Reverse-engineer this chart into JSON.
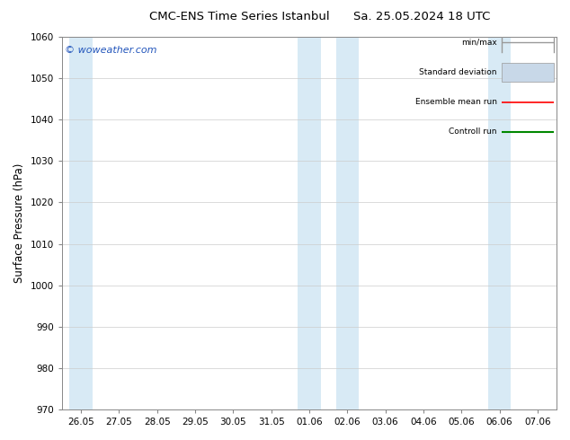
{
  "title_left": "CMC-ENS Time Series Istanbul",
  "title_right": "Sa. 25.05.2024 18 UTC",
  "ylabel": "Surface Pressure (hPa)",
  "ylim": [
    970,
    1060
  ],
  "yticks": [
    970,
    980,
    990,
    1000,
    1010,
    1020,
    1030,
    1040,
    1050,
    1060
  ],
  "x_labels": [
    "26.05",
    "27.05",
    "28.05",
    "29.05",
    "30.05",
    "31.05",
    "01.06",
    "02.06",
    "03.06",
    "04.06",
    "05.06",
    "06.06",
    "07.06"
  ],
  "blue_band_indices": [
    0,
    6,
    7,
    11
  ],
  "bg_color": "#ffffff",
  "band_color": "#d8eaf5",
  "watermark": "© woweather.com",
  "watermark_color": "#2255bb",
  "legend_items": [
    {
      "label": "min/max",
      "color": "#999999",
      "lw": 1.0,
      "type": "minmax"
    },
    {
      "label": "Standard deviation",
      "color": "#c8d8e8",
      "lw": 1.0,
      "type": "stddev"
    },
    {
      "label": "Ensemble mean run",
      "color": "#ff0000",
      "lw": 1.2,
      "type": "line"
    },
    {
      "label": "Controll run",
      "color": "#008800",
      "lw": 1.5,
      "type": "line"
    }
  ],
  "title_fontsize": 9.5,
  "tick_fontsize": 7.5,
  "ylabel_fontsize": 8.5
}
